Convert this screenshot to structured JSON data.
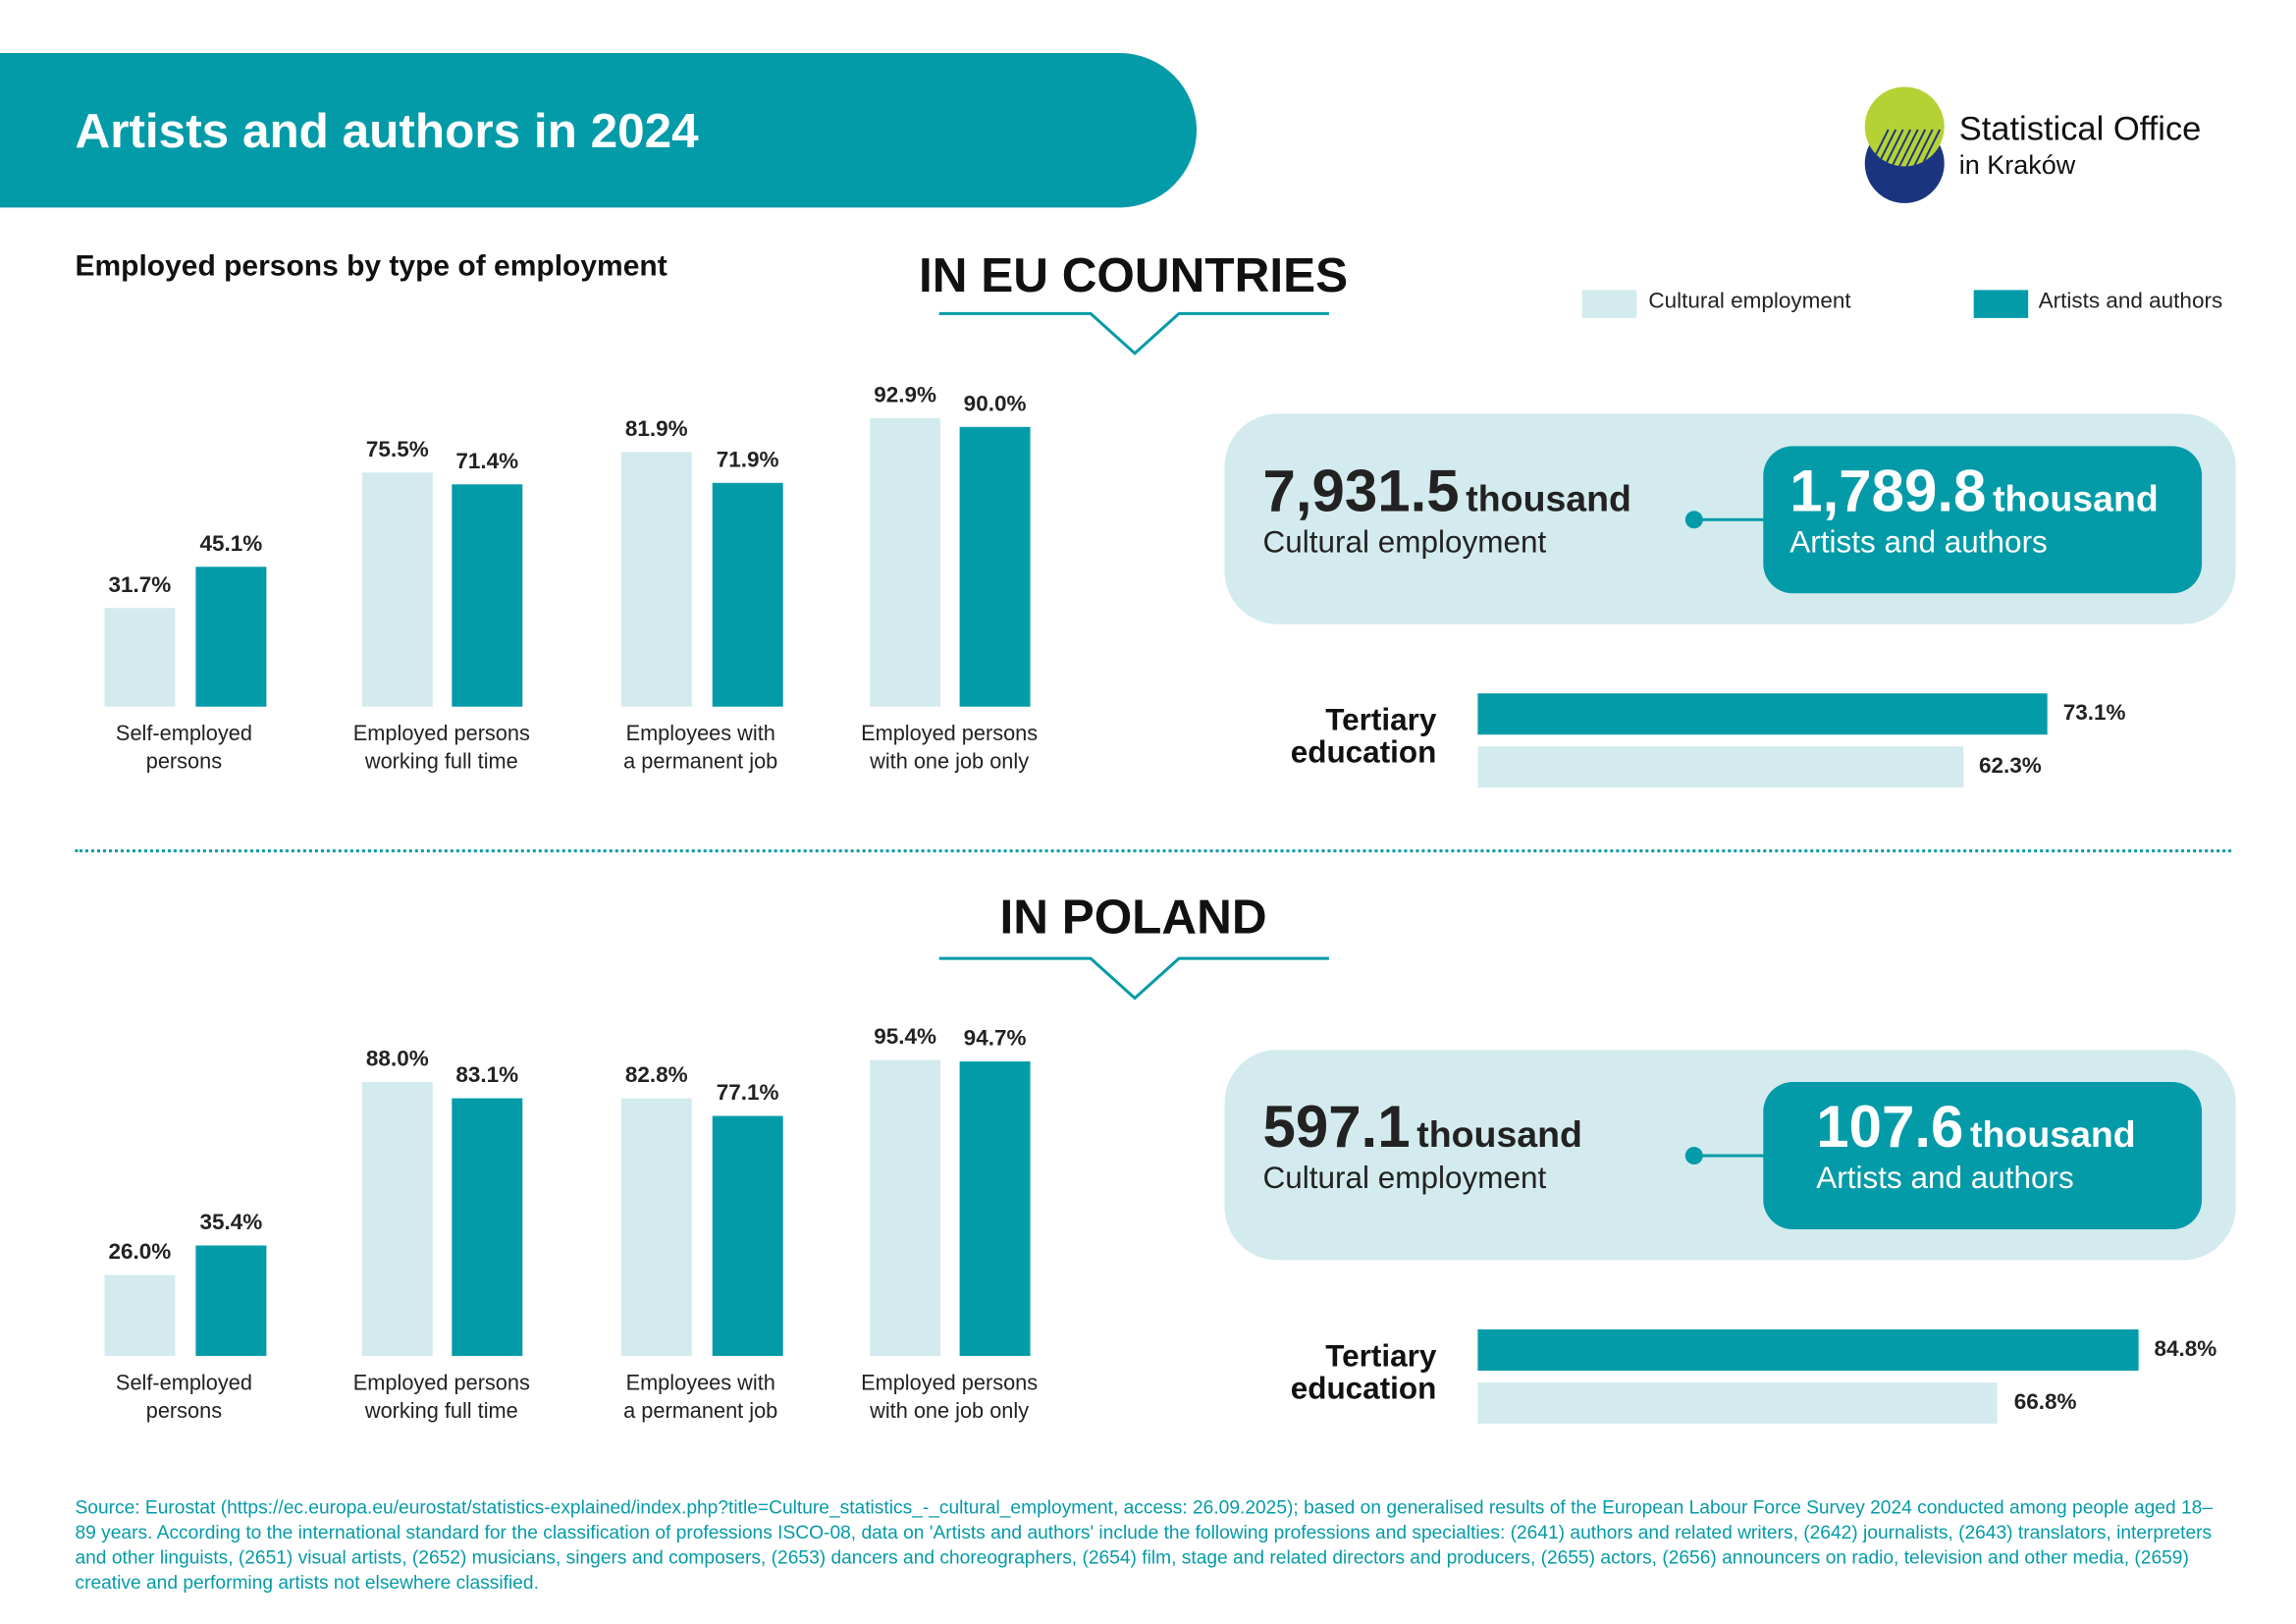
{
  "header": {
    "title": "Artists and authors in 2024"
  },
  "logo": {
    "line1": "Statistical Office",
    "line2": "in Kraków"
  },
  "colors": {
    "teal": "#049ba8",
    "light": "#d3ebee",
    "logo_green": "#b5d234",
    "logo_blue": "#1b3480"
  },
  "subtitle": "Employed persons by type of employment",
  "legend": {
    "cultural": "Cultural employment",
    "artists": "Artists and authors"
  },
  "chart_data": [
    {
      "type": "bar",
      "title": "IN EU COUNTRIES",
      "categories": [
        "Self-employed persons",
        "Employed persons working full time",
        "Employees with a permanent job",
        "Employed persons with one job only"
      ],
      "category_lines": [
        [
          "Self-employed",
          "persons"
        ],
        [
          "Employed persons",
          "working full time"
        ],
        [
          "Employees with",
          "a permanent job"
        ],
        [
          "Employed persons",
          "with one job only"
        ]
      ],
      "series": [
        {
          "name": "Cultural employment",
          "values": [
            31.7,
            75.5,
            81.9,
            92.9
          ],
          "labels": [
            "31.7%",
            "75.5%",
            "81.9%",
            "92.9%"
          ]
        },
        {
          "name": "Artists and authors",
          "values": [
            45.1,
            71.4,
            71.9,
            90.0
          ],
          "labels": [
            "45.1%",
            "71.4%",
            "71.9%",
            "90.0%"
          ]
        }
      ],
      "ylim": [
        0,
        100
      ]
    },
    {
      "type": "bar",
      "title": "IN POLAND",
      "categories": [
        "Self-employed persons",
        "Employed persons working full time",
        "Employees with a permanent job",
        "Employed persons with one job only"
      ],
      "category_lines": [
        [
          "Self-employed",
          "persons"
        ],
        [
          "Employed persons",
          "working full time"
        ],
        [
          "Employees with",
          "a permanent job"
        ],
        [
          "Employed persons",
          "with one job only"
        ]
      ],
      "series": [
        {
          "name": "Cultural employment",
          "values": [
            26.0,
            88.0,
            82.8,
            95.4
          ],
          "labels": [
            "26.0%",
            "88.0%",
            "82.8%",
            "95.4%"
          ]
        },
        {
          "name": "Artists and authors",
          "values": [
            35.4,
            83.1,
            77.1,
            94.7
          ],
          "labels": [
            "35.4%",
            "83.1%",
            "77.1%",
            "94.7%"
          ]
        }
      ],
      "ylim": [
        0,
        100
      ]
    },
    {
      "type": "bar",
      "title": "Tertiary education (EU)",
      "label_lines": [
        "Tertiary",
        "education"
      ],
      "series": [
        {
          "name": "Artists and authors",
          "value": 73.1,
          "label": "73.1%"
        },
        {
          "name": "Cultural employment",
          "value": 62.3,
          "label": "62.3%"
        }
      ]
    },
    {
      "type": "bar",
      "title": "Tertiary education (Poland)",
      "label_lines": [
        "Tertiary",
        "education"
      ],
      "series": [
        {
          "name": "Artists and authors",
          "value": 84.8,
          "label": "84.8%"
        },
        {
          "name": "Cultural employment",
          "value": 66.8,
          "label": "66.8%"
        }
      ]
    }
  ],
  "eu": {
    "title": "IN EU COUNTRIES",
    "cultural_value": "7,931.5",
    "cultural_unit": "thousand",
    "cultural_label": "Cultural employment",
    "artists_value": "1,789.8",
    "artists_unit": "thousand",
    "artists_label": "Artists and authors"
  },
  "pl": {
    "title": "IN POLAND",
    "cultural_value": "597.1",
    "cultural_unit": "thousand",
    "cultural_label": "Cultural employment",
    "artists_value": "107.6",
    "artists_unit": "thousand",
    "artists_label": "Artists and authors"
  },
  "footer": "Source: Eurostat (https://ec.europa.eu/eurostat/statistics-explained/index.php?title=Culture_statistics_-_cultural_employment, access: 26.09.2025); based on generalised results of the European Labour Force Survey 2024 conducted among people aged 18–89 years. According to the international standard for the classification of professions ISCO-08, data on 'Artists and authors' include the following professions and specialties: (2641) authors and related writers, (2642) journalists, (2643) translators, interpreters and other linguists, (2651) visual artists, (2652) musicians, singers and composers, (2653) dancers and choreographers, (2654) film, stage and related directors and producers, (2655) actors, (2656) announcers on radio, television and other media, (2659) creative and performing artists not elsewhere classified."
}
